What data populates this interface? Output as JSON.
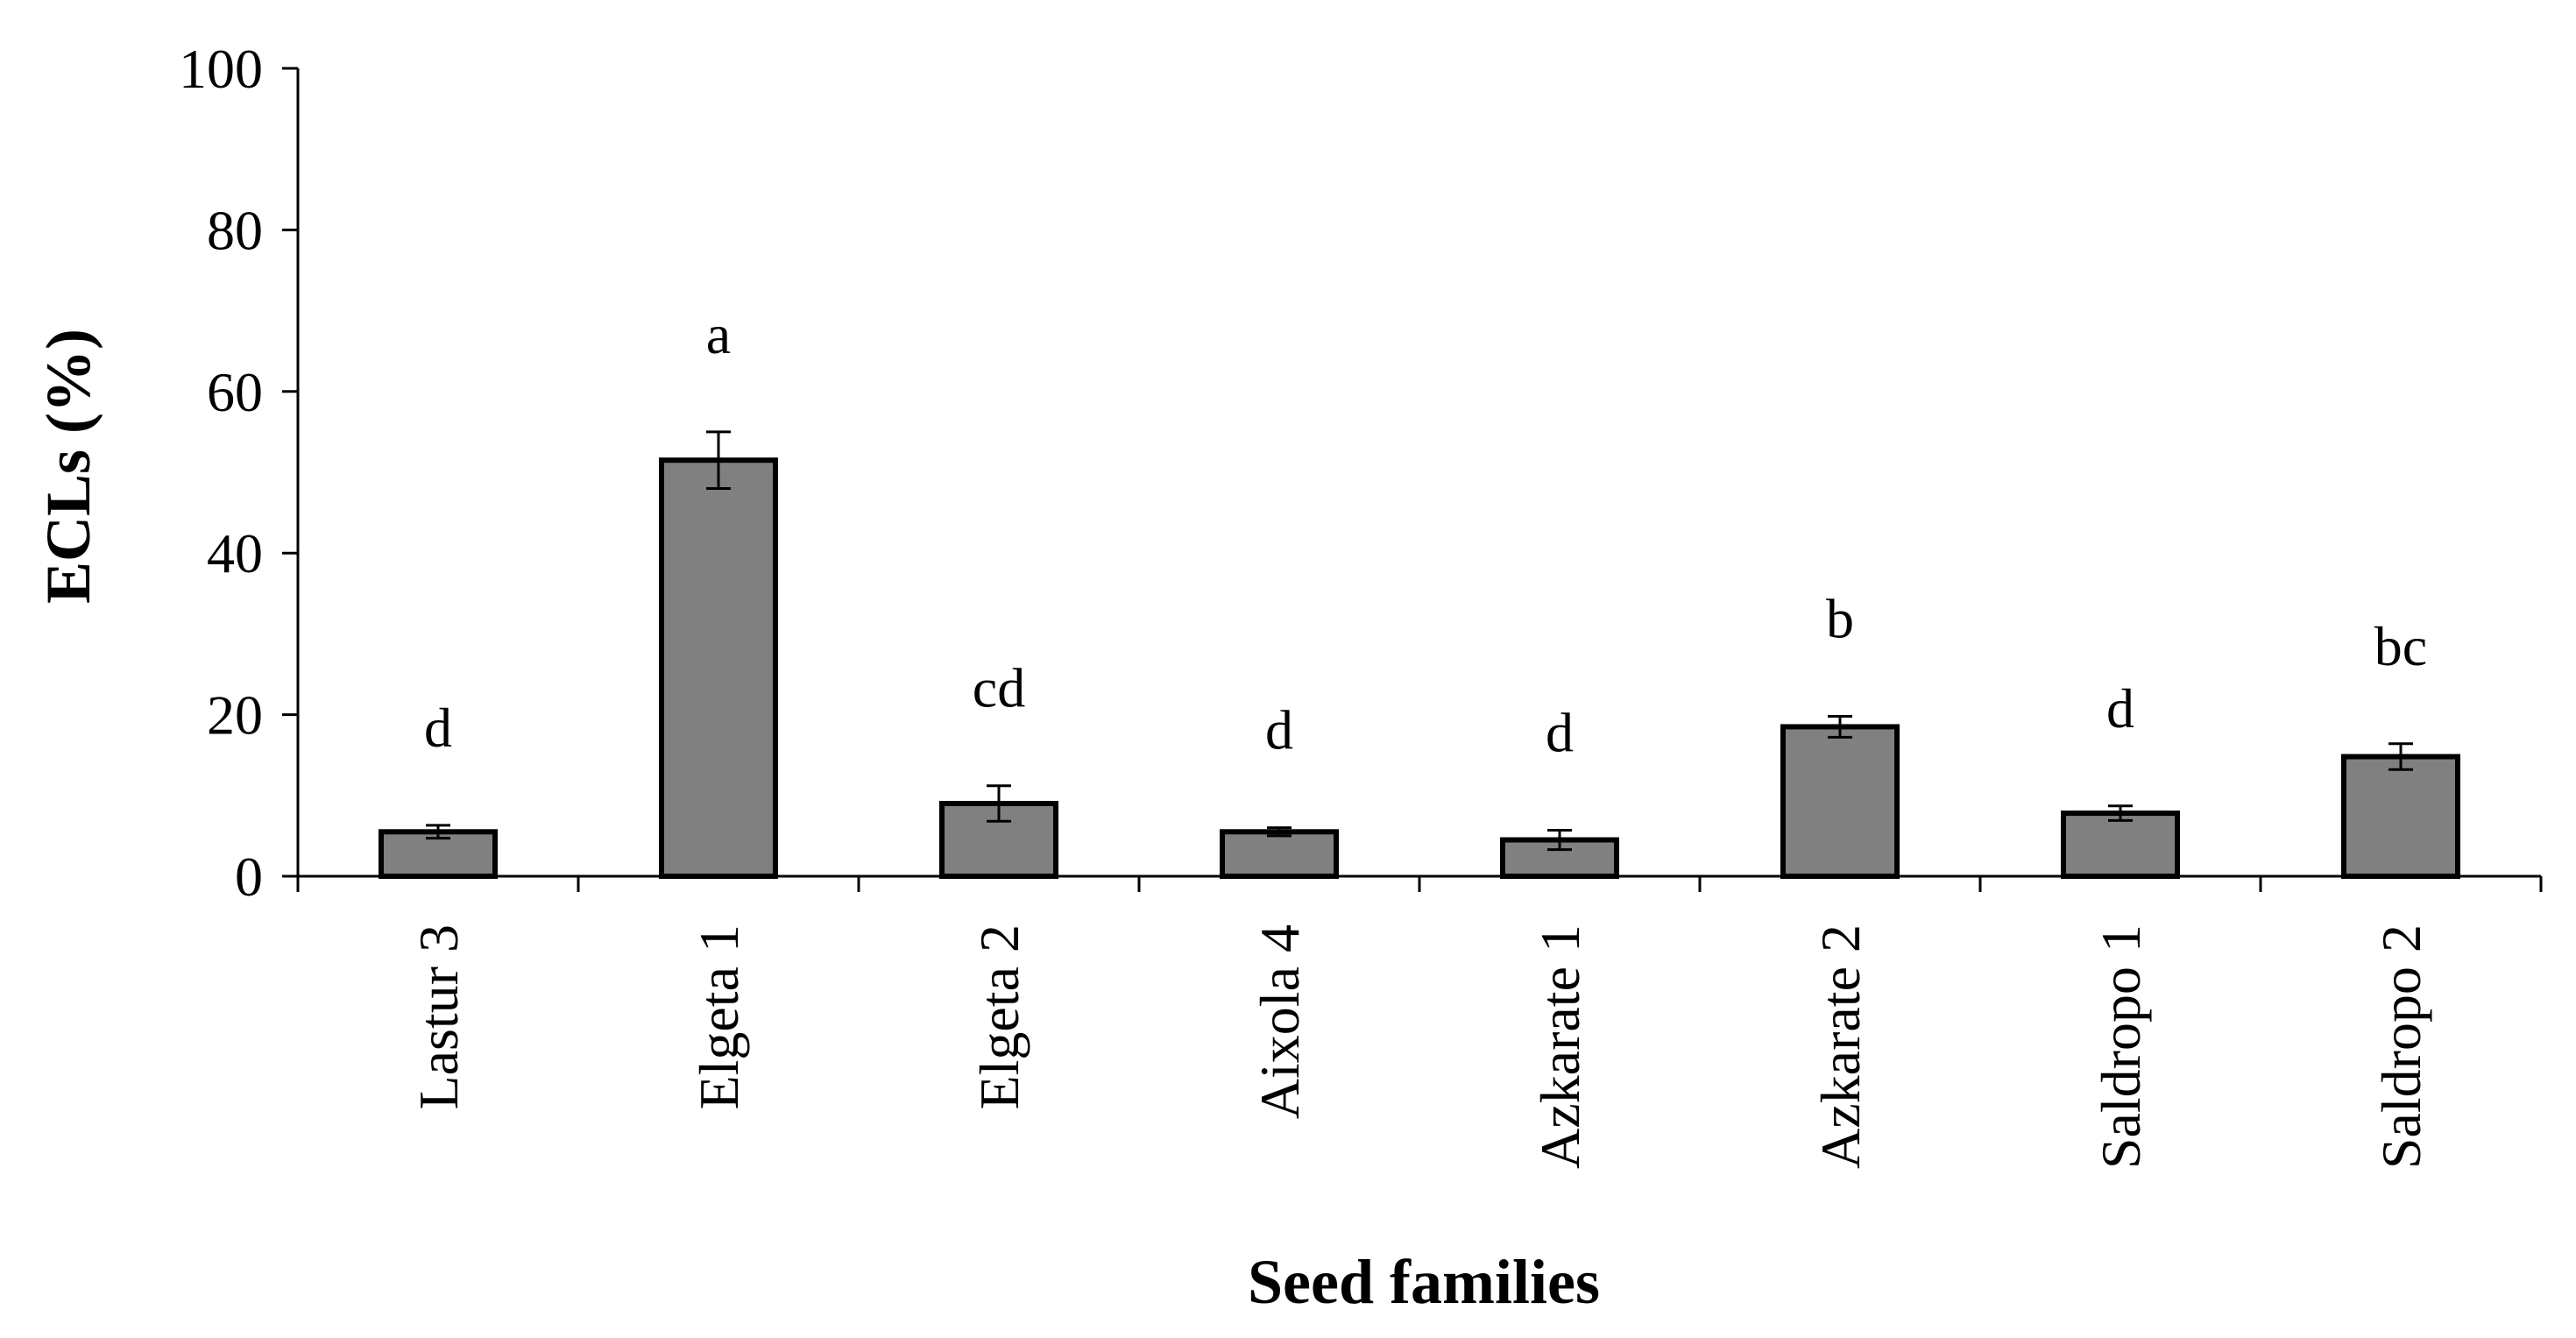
{
  "chart_data": {
    "type": "bar",
    "title": "",
    "xlabel": "Seed families",
    "ylabel": "ECLs (%)",
    "ylim": [
      0,
      100
    ],
    "yticks": [
      0,
      20,
      40,
      60,
      80,
      100
    ],
    "categories": [
      "Lastur 3",
      "Elgeta 1",
      "Elgeta 2",
      "Aixola 4",
      "Azkarate 1",
      "Azkarate 2",
      "Saldropo 1",
      "Saldropo 2"
    ],
    "values": [
      5.5,
      51.5,
      9.0,
      5.5,
      4.5,
      18.5,
      7.8,
      14.8
    ],
    "errors": [
      0.8,
      3.5,
      2.2,
      0.5,
      1.2,
      1.3,
      0.9,
      1.6
    ],
    "significance": [
      "d",
      "a",
      "cd",
      "d",
      "d",
      "b",
      "d",
      "bc"
    ],
    "bar_color": "#808080",
    "bar_edge_color": "#000000",
    "grid": false,
    "legend": "none"
  }
}
